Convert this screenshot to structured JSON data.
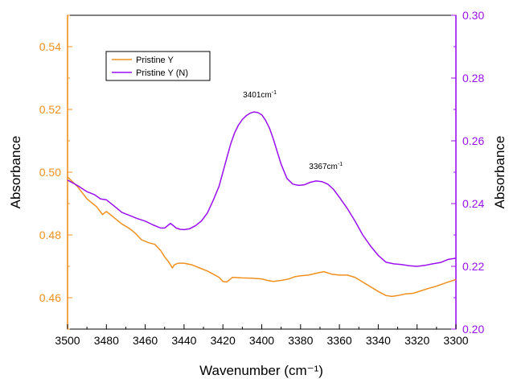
{
  "chart_data": {
    "type": "line",
    "xlabel": "Wavenumber (cm⁻¹)",
    "ylabel_left": "Absorbance",
    "ylabel_right": "Absorbance",
    "xlim": [
      3500,
      3300
    ],
    "xticks": [
      3500,
      3480,
      3460,
      3440,
      3420,
      3400,
      3380,
      3360,
      3340,
      3320,
      3300
    ],
    "ylim_left": [
      0.45,
      0.55
    ],
    "yticks_left": [
      0.46,
      0.48,
      0.5,
      0.52,
      0.54
    ],
    "ylim_right": [
      0.2,
      0.3
    ],
    "yticks_right": [
      0.2,
      0.22,
      0.24,
      0.26,
      0.28,
      0.3
    ],
    "grid": false,
    "legend_position": "top-left",
    "colors": {
      "left_axis": "#f0901e",
      "right_axis": "#9a10f0",
      "pristine_y": "#f0901e",
      "pristine_y_n": "#9a10f0"
    },
    "annotations": [
      {
        "text": "3401cm",
        "superscript": "-1",
        "x": 3401
      },
      {
        "text": "3367cm",
        "superscript": "-1",
        "x": 3367
      }
    ],
    "series": [
      {
        "name": "Pristine Y",
        "axis": "left",
        "x": [
          3500,
          3495,
          3490,
          3485,
          3482,
          3480,
          3476,
          3472,
          3468,
          3465,
          3462,
          3458,
          3455,
          3452,
          3450,
          3448,
          3447,
          3446,
          3445,
          3443,
          3440,
          3436,
          3432,
          3428,
          3425,
          3422,
          3420,
          3418,
          3415,
          3410,
          3405,
          3400,
          3397,
          3394,
          3390,
          3386,
          3383,
          3380,
          3376,
          3372,
          3368,
          3364,
          3360,
          3356,
          3352,
          3348,
          3344,
          3340,
          3336,
          3333,
          3330,
          3326,
          3322,
          3318,
          3314,
          3310,
          3305,
          3300
        ],
        "y": [
          0.4985,
          0.4955,
          0.4915,
          0.489,
          0.4865,
          0.4875,
          0.4855,
          0.4835,
          0.482,
          0.4805,
          0.4785,
          0.4775,
          0.477,
          0.475,
          0.473,
          0.4715,
          0.4705,
          0.4695,
          0.4705,
          0.471,
          0.471,
          0.4705,
          0.4695,
          0.4685,
          0.4675,
          0.4665,
          0.4652,
          0.465,
          0.4665,
          0.4663,
          0.4662,
          0.466,
          0.4655,
          0.4652,
          0.4655,
          0.466,
          0.4667,
          0.467,
          0.4672,
          0.4678,
          0.4683,
          0.4675,
          0.4672,
          0.4672,
          0.4665,
          0.465,
          0.4635,
          0.462,
          0.4607,
          0.4604,
          0.4607,
          0.4612,
          0.4614,
          0.4622,
          0.463,
          0.4637,
          0.4648,
          0.4658
        ]
      },
      {
        "name": "Pristine Y (N)",
        "axis": "right",
        "x": [
          3500,
          3495,
          3490,
          3486,
          3483,
          3480,
          3476,
          3472,
          3468,
          3464,
          3460,
          3456,
          3452,
          3450,
          3448,
          3447,
          3446,
          3444,
          3442,
          3440,
          3437,
          3434,
          3431,
          3428,
          3425,
          3422,
          3420,
          3418,
          3416,
          3414,
          3412,
          3410,
          3408,
          3406,
          3404,
          3402,
          3400,
          3398,
          3396,
          3394,
          3392,
          3390,
          3387,
          3384,
          3381,
          3378,
          3375,
          3372,
          3369,
          3366,
          3363,
          3360,
          3356,
          3352,
          3348,
          3344,
          3340,
          3336,
          3332,
          3328,
          3324,
          3320,
          3316,
          3312,
          3308,
          3304,
          3300
        ],
        "y": [
          0.2475,
          0.2458,
          0.2438,
          0.2428,
          0.2415,
          0.2412,
          0.2392,
          0.2372,
          0.2362,
          0.2352,
          0.2344,
          0.2332,
          0.2322,
          0.2322,
          0.2332,
          0.2337,
          0.2332,
          0.2322,
          0.2318,
          0.2317,
          0.232,
          0.233,
          0.2345,
          0.237,
          0.241,
          0.2455,
          0.25,
          0.2545,
          0.259,
          0.2625,
          0.265,
          0.2668,
          0.268,
          0.2688,
          0.2692,
          0.269,
          0.2683,
          0.2665,
          0.264,
          0.2605,
          0.2565,
          0.2525,
          0.248,
          0.2462,
          0.2458,
          0.246,
          0.2468,
          0.2472,
          0.247,
          0.2462,
          0.2445,
          0.242,
          0.2385,
          0.2345,
          0.23,
          0.2265,
          0.2235,
          0.2213,
          0.2208,
          0.2206,
          0.2202,
          0.22,
          0.2203,
          0.2208,
          0.2212,
          0.2222,
          0.2226
        ]
      }
    ]
  }
}
